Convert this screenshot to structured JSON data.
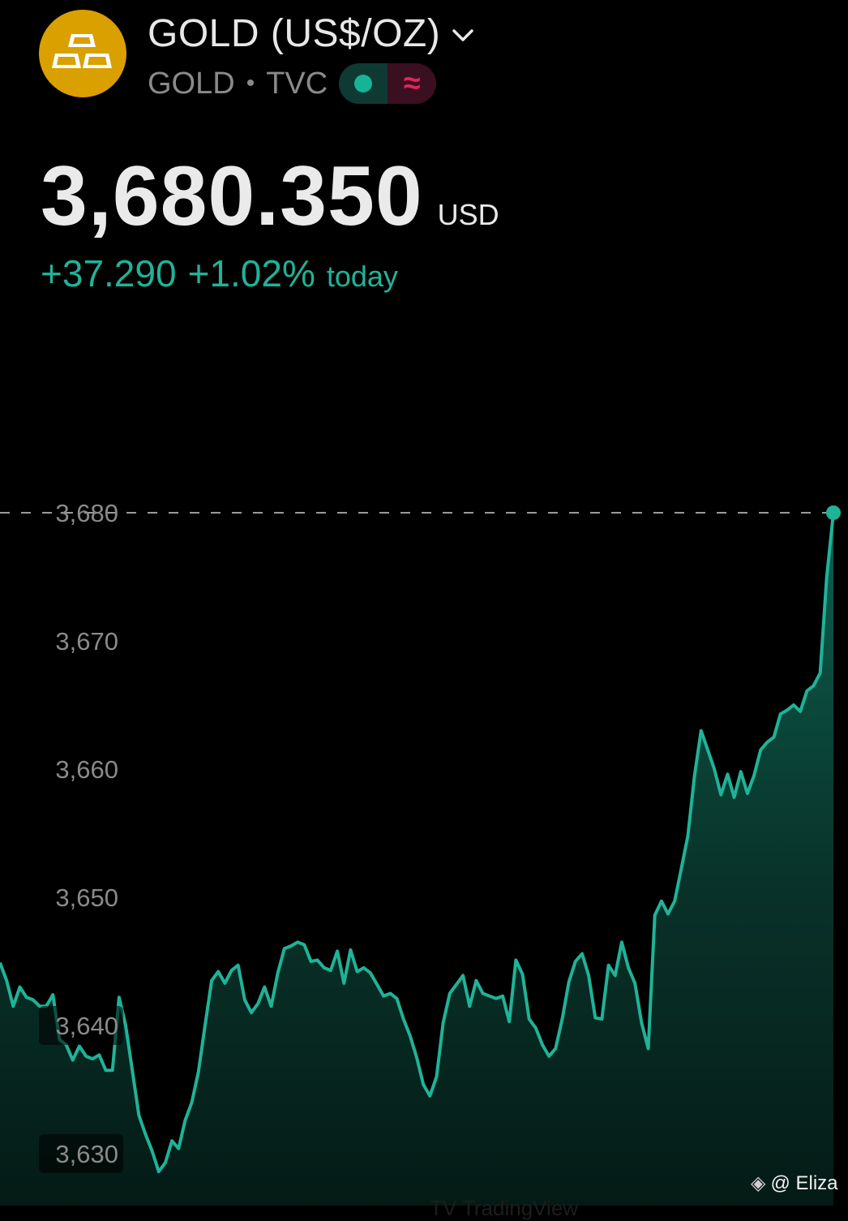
{
  "header": {
    "title": "GOLD (US$/OZ)",
    "symbol": "GOLD",
    "exchange": "TVC",
    "logo_icon": "gold-bars-icon",
    "accent_logo": "#d9a000"
  },
  "price": {
    "value": "3,680.350",
    "currency": "USD",
    "change": "+37.290",
    "change_pct": "+1.02%",
    "period": "today",
    "color_up": "#1fb398"
  },
  "chart_data": {
    "type": "area",
    "ylim": [
      3627,
      3681
    ],
    "yticks": [
      "3,680",
      "3,670",
      "3,660",
      "3,650",
      "3,640",
      "3,630"
    ],
    "last_value": 3680,
    "values": [
      3644.9,
      3643.5,
      3641.5,
      3643,
      3642.2,
      3642,
      3641.5,
      3641.5,
      3642.4,
      3638.9,
      3638.5,
      3637.3,
      3638.4,
      3637.6,
      3637.4,
      3637.7,
      3636.5,
      3636.5,
      3642.2,
      3640,
      3636.5,
      3633,
      3631.5,
      3630.2,
      3628.6,
      3629.3,
      3631,
      3630.4,
      3632.6,
      3634,
      3636.4,
      3640,
      3643.5,
      3644.2,
      3643.3,
      3644.3,
      3644.7,
      3642,
      3641,
      3641.7,
      3643,
      3641.5,
      3644.1,
      3646,
      3646.2,
      3646.5,
      3646.3,
      3645,
      3645.1,
      3644.5,
      3644.3,
      3645.8,
      3643.3,
      3645.9,
      3644.2,
      3644.5,
      3644.1,
      3643.2,
      3642.3,
      3642.5,
      3642.1,
      3640.5,
      3639.2,
      3637.5,
      3635.4,
      3634.5,
      3636,
      3640.2,
      3642.5,
      3643.2,
      3643.9,
      3641.5,
      3643.5,
      3642.5,
      3642.3,
      3642.1,
      3642.3,
      3640.3,
      3645.1,
      3644,
      3640.5,
      3639.8,
      3638.5,
      3637.6,
      3638.2,
      3640.5,
      3643.4,
      3645,
      3645.6,
      3643.9,
      3640.6,
      3640.5,
      3644.7,
      3643.9,
      3646.5,
      3644.5,
      3643.3,
      3640.2,
      3638.2,
      3648.6,
      3649.7,
      3648.7,
      3649.7,
      3652.2,
      3654.8,
      3659.5,
      3663,
      3661.5,
      3660,
      3658,
      3659.6,
      3657.8,
      3659.8,
      3658.1,
      3659.5,
      3661.5,
      3662.1,
      3662.5,
      3664.3,
      3664.6,
      3665,
      3664.5,
      3666.1,
      3666.5,
      3667.5,
      3675,
      3680
    ]
  },
  "footer": {
    "tag": "@ Eliza",
    "tag_icon": "binance-diamond-icon",
    "watermark": "TV TradingView"
  }
}
